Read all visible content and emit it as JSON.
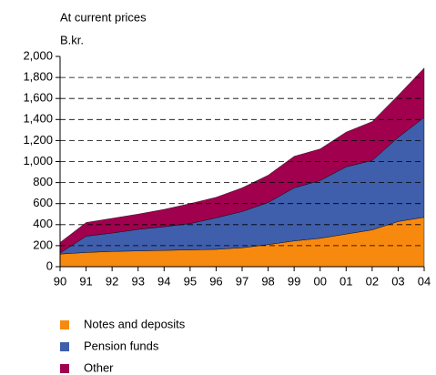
{
  "chart_data": {
    "type": "stacked_area",
    "title": "At current prices",
    "y_label": "B.kr.",
    "categories": [
      "90",
      "91",
      "92",
      "93",
      "94",
      "95",
      "96",
      "97",
      "98",
      "99",
      "00",
      "01",
      "02",
      "03",
      "04"
    ],
    "series": [
      {
        "name": "Notes and deposits",
        "color": "#f7890f",
        "values": [
          120,
          135,
          145,
          150,
          155,
          160,
          165,
          180,
          210,
          245,
          270,
          310,
          350,
          430,
          470
        ]
      },
      {
        "name": "Pension funds",
        "color": "#3f5eab",
        "values": [
          10,
          155,
          175,
          205,
          225,
          250,
          300,
          345,
          400,
          505,
          550,
          640,
          660,
          800,
          950
        ]
      },
      {
        "name": "Other",
        "color": "#a0004e",
        "values": [
          100,
          130,
          140,
          145,
          165,
          190,
          195,
          225,
          260,
          300,
          300,
          330,
          370,
          400,
          470
        ]
      }
    ],
    "ylim": [
      0,
      2000
    ],
    "yticks": [
      0,
      200,
      400,
      600,
      800,
      {
        "value": 1000,
        "label": "1,000"
      },
      {
        "value": 1200,
        "label": "1,200"
      },
      {
        "value": 1400,
        "label": "1,400"
      },
      {
        "value": 1600,
        "label": "1,600"
      },
      {
        "value": 1800,
        "label": "1,800"
      },
      {
        "value": 2000,
        "label": "2,000"
      }
    ],
    "grid": true,
    "legend": "bottom"
  }
}
